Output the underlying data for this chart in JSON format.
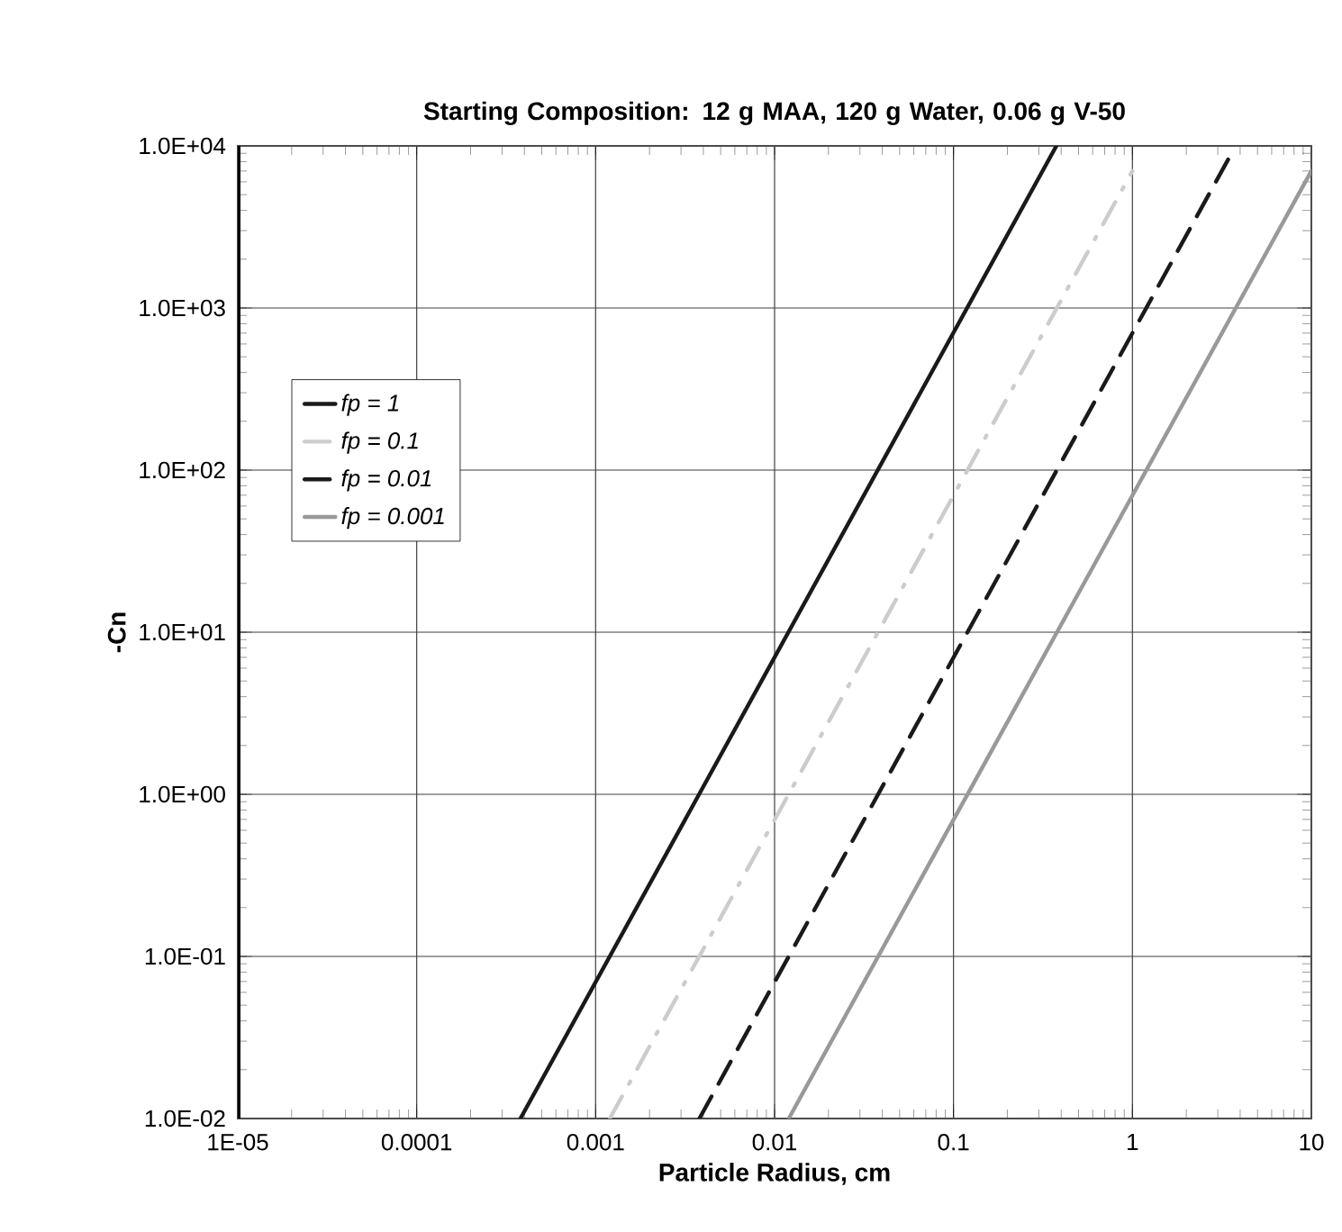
{
  "chart_data": {
    "type": "line",
    "title": "Starting Composition: 12 g MAA, 120 g Water, 0.06 g V-50",
    "xlabel": "Particle Radius, cm",
    "ylabel": "-Cn",
    "log": "xy",
    "grid": true,
    "legend": "left",
    "marker": "none",
    "xlim": [
      1e-05,
      10
    ],
    "ylim": [
      0.01,
      10000
    ],
    "xticks": [
      {
        "value": 1e-05,
        "label": "1E-05"
      },
      {
        "value": 0.0001,
        "label": "0.0001"
      },
      {
        "value": 0.001,
        "label": "0.001"
      },
      {
        "value": 0.01,
        "label": "0.01"
      },
      {
        "value": 0.1,
        "label": "0.1"
      },
      {
        "value": 1,
        "label": "1"
      },
      {
        "value": 10,
        "label": "10"
      }
    ],
    "yticks": [
      {
        "value": 0.01,
        "label": "1.0E-02"
      },
      {
        "value": 0.1,
        "label": "1.0E-01"
      },
      {
        "value": 1,
        "label": "1.0E+00"
      },
      {
        "value": 10,
        "label": "1.0E+01"
      },
      {
        "value": 100,
        "label": "1.0E+02"
      },
      {
        "value": 1000,
        "label": "1.0E+03"
      },
      {
        "value": 10000,
        "label": "1.0E+04"
      }
    ],
    "series": [
      {
        "name": "fp = 1",
        "color": "#1a1a1a",
        "line_style": "solid",
        "x": [
          0.00038,
          0.376
        ],
        "values": [
          0.01,
          10000
        ]
      },
      {
        "name": "fp = 0.1",
        "color": "#cccccc",
        "line_style": "dashdot",
        "x": [
          0.0012,
          1
        ],
        "values": [
          0.01,
          7000
        ]
      },
      {
        "name": "fp = 0.01",
        "color": "#1a1a1a",
        "line_style": "dashed",
        "x": [
          0.0038,
          3.5
        ],
        "values": [
          0.01,
          8600
        ]
      },
      {
        "name": "fp = 0.001",
        "color": "#999999",
        "line_style": "solid",
        "x": [
          0.012,
          10
        ],
        "values": [
          0.01,
          7000
        ]
      }
    ]
  }
}
